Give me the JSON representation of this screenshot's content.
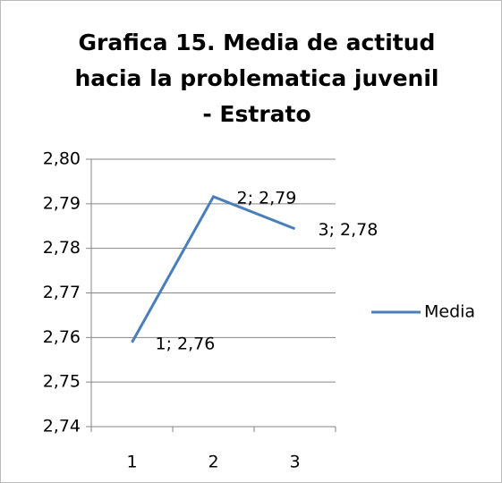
{
  "chart_data": {
    "type": "line",
    "title": "Grafica 15. Media de actitud hacia la problematica juvenil - Estrato",
    "categories": [
      "1",
      "2",
      "3"
    ],
    "series": [
      {
        "name": "Media",
        "color": "#4a7ebb",
        "values": [
          2.7589,
          2.7916,
          2.7844
        ],
        "value_labels": [
          "1; 2,76",
          "2; 2,79",
          "3; 2,78"
        ]
      }
    ],
    "ylim": [
      2.74,
      2.8
    ],
    "yticks": [
      {
        "value": 2.74,
        "label": "2,74"
      },
      {
        "value": 2.75,
        "label": "2,75"
      },
      {
        "value": 2.76,
        "label": "2,76"
      },
      {
        "value": 2.77,
        "label": "2,77"
      },
      {
        "value": 2.78,
        "label": "2,78"
      },
      {
        "value": 2.79,
        "label": "2,79"
      },
      {
        "value": 2.8,
        "label": "2,80"
      }
    ],
    "grid": true,
    "legend": "right"
  }
}
